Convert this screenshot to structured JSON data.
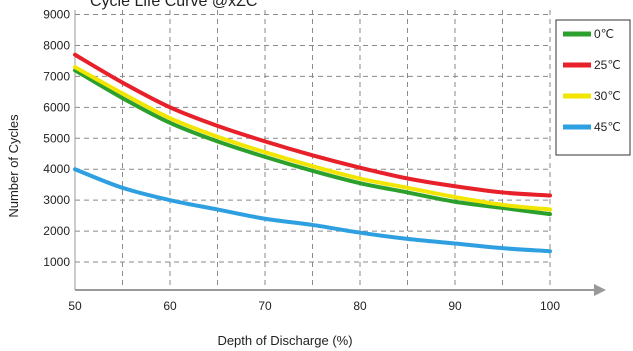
{
  "chart_data": {
    "type": "line",
    "title": "Cycle Life Curve @xZC",
    "xlabel": "Depth of Discharge  (%)",
    "ylabel": "Number of Cycles",
    "xlim": [
      50,
      100
    ],
    "ylim": [
      0,
      9000
    ],
    "x_ticks": [
      50,
      60,
      70,
      80,
      90,
      100
    ],
    "y_ticks": [
      1000,
      2000,
      3000,
      4000,
      5000,
      6000,
      7000,
      8000,
      9000
    ],
    "grid": true,
    "legend_position": "top-right",
    "x": [
      50,
      55,
      60,
      65,
      70,
      75,
      80,
      85,
      90,
      95,
      100
    ],
    "series": [
      {
        "name": "0℃",
        "color": "#2ca02c",
        "values": [
          7200,
          6300,
          5500,
          4900,
          4400,
          3950,
          3550,
          3250,
          2950,
          2750,
          2550
        ]
      },
      {
        "name": "25℃",
        "color": "#e8202a",
        "values": [
          7700,
          6800,
          6000,
          5400,
          4900,
          4450,
          4050,
          3700,
          3450,
          3250,
          3150
        ]
      },
      {
        "name": "30℃",
        "color": "#f2e600",
        "values": [
          7300,
          6450,
          5650,
          5050,
          4550,
          4100,
          3700,
          3400,
          3100,
          2850,
          2700
        ]
      },
      {
        "name": "45℃",
        "color": "#2e9fe0",
        "values": [
          4000,
          3400,
          3000,
          2700,
          2400,
          2200,
          1950,
          1750,
          1600,
          1450,
          1350
        ]
      }
    ]
  }
}
